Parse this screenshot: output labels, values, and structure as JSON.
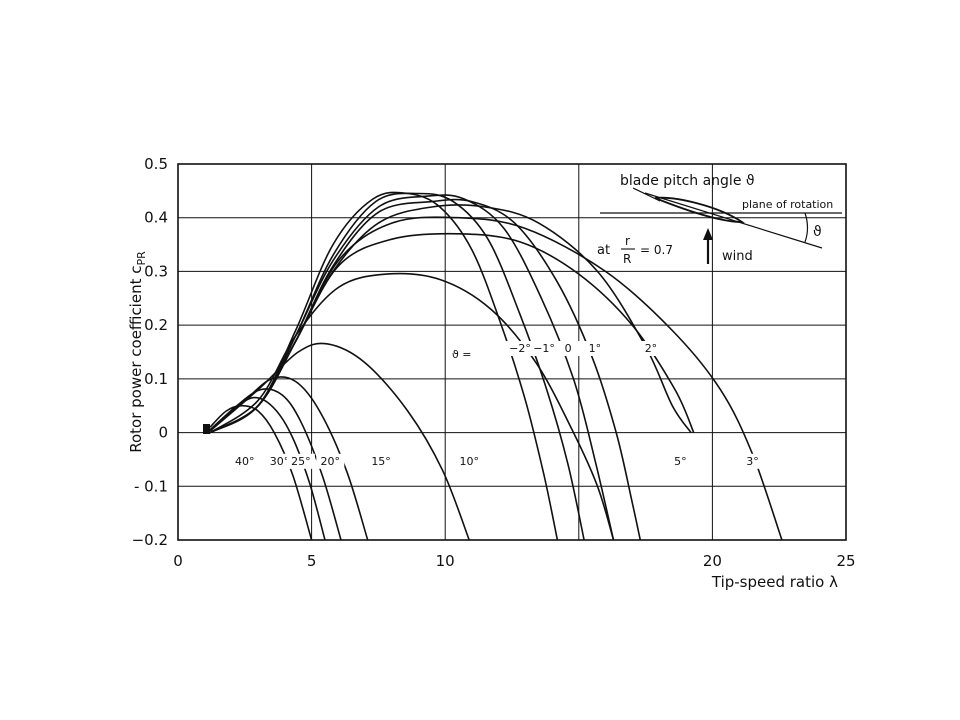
{
  "chart_data": {
    "type": "line",
    "title": "",
    "xlabel": "Tip-speed ratio λ",
    "ylabel": "Rotor power coefficient c",
    "ylabel_subscript": "PR",
    "xlim": [
      0,
      25
    ],
    "ylim": [
      -0.2,
      0.5
    ],
    "x_ticks": [
      0,
      5,
      10,
      20,
      25
    ],
    "x_tick_labels": [
      "0",
      "5",
      "10",
      "20",
      "25"
    ],
    "y_ticks": [
      0.5,
      0.4,
      0.3,
      0.2,
      0.1,
      0,
      -0.1,
      -0.2
    ],
    "y_tick_labels": [
      "0.5",
      "0.4",
      "0.3",
      "0.2",
      "0.1",
      "0",
      "- 0.1",
      "−0.2"
    ],
    "grid": true,
    "legend": "none",
    "theta_prefix": "ϑ  =",
    "series": [
      {
        "name": "40°",
        "label_x": 2.5,
        "label_y": -0.06,
        "points": [
          [
            1.2,
            0.01
          ],
          [
            1.8,
            0.04
          ],
          [
            2.4,
            0.05
          ],
          [
            3.0,
            0.04
          ],
          [
            3.6,
            0.0
          ],
          [
            4.3,
            -0.08
          ],
          [
            5.0,
            -0.2
          ]
        ]
      },
      {
        "name": "30°",
        "label_x": 3.8,
        "label_y": -0.06,
        "points": [
          [
            1.2,
            0.005
          ],
          [
            2.0,
            0.04
          ],
          [
            2.8,
            0.065
          ],
          [
            3.5,
            0.05
          ],
          [
            4.2,
            0.0
          ],
          [
            4.9,
            -0.09
          ],
          [
            5.5,
            -0.2
          ]
        ]
      },
      {
        "name": "25°",
        "label_x": 4.6,
        "label_y": -0.06,
        "points": [
          [
            1.2,
            0.005
          ],
          [
            2.2,
            0.05
          ],
          [
            3.1,
            0.08
          ],
          [
            3.9,
            0.07
          ],
          [
            4.6,
            0.02
          ],
          [
            5.4,
            -0.08
          ],
          [
            6.1,
            -0.2
          ]
        ]
      },
      {
        "name": "20°",
        "label_x": 5.7,
        "label_y": -0.06,
        "points": [
          [
            1.2,
            0.005
          ],
          [
            2.5,
            0.06
          ],
          [
            3.5,
            0.1
          ],
          [
            4.4,
            0.095
          ],
          [
            5.3,
            0.04
          ],
          [
            6.3,
            -0.07
          ],
          [
            7.1,
            -0.2
          ]
        ]
      },
      {
        "name": "15°",
        "label_x": 7.6,
        "label_y": -0.06,
        "points": [
          [
            1.2,
            0.003
          ],
          [
            3.0,
            0.08
          ],
          [
            4.5,
            0.15
          ],
          [
            5.6,
            0.165
          ],
          [
            7.0,
            0.13
          ],
          [
            8.6,
            0.04
          ],
          [
            9.9,
            -0.07
          ],
          [
            10.9,
            -0.2
          ]
        ]
      },
      {
        "name": "10°",
        "label_x": 10.9,
        "label_y": -0.06,
        "points": [
          [
            1.2,
            0.0
          ],
          [
            3.0,
            0.06
          ],
          [
            4.4,
            0.18
          ],
          [
            6.0,
            0.27
          ],
          [
            7.8,
            0.295
          ],
          [
            9.8,
            0.285
          ],
          [
            11.7,
            0.23
          ],
          [
            13.4,
            0.13
          ],
          [
            14.8,
            0.0
          ],
          [
            15.7,
            -0.1
          ],
          [
            16.3,
            -0.2
          ]
        ]
      },
      {
        "name": "5°",
        "label_x": 18.8,
        "label_y": -0.06,
        "points": [
          [
            1.2,
            0.0
          ],
          [
            3.0,
            0.05
          ],
          [
            4.4,
            0.17
          ],
          [
            6.0,
            0.31
          ],
          [
            8.0,
            0.36
          ],
          [
            10.5,
            0.37
          ],
          [
            12.8,
            0.355
          ],
          [
            15.0,
            0.295
          ],
          [
            17.0,
            0.2
          ],
          [
            18.6,
            0.08
          ],
          [
            19.3,
            0.0
          ]
        ]
      },
      {
        "name": "3°",
        "label_x": 21.5,
        "label_y": -0.06,
        "points": [
          [
            1.2,
            0.0
          ],
          [
            3.0,
            0.05
          ],
          [
            4.4,
            0.17
          ],
          [
            6.0,
            0.32
          ],
          [
            8.0,
            0.39
          ],
          [
            10.5,
            0.4
          ],
          [
            13.0,
            0.38
          ],
          [
            16.0,
            0.3
          ],
          [
            18.5,
            0.19
          ],
          [
            20.3,
            0.08
          ],
          [
            21.5,
            -0.04
          ],
          [
            22.6,
            -0.2
          ]
        ]
      },
      {
        "name": "2°",
        "label_x": 17.7,
        "label_y": 0.15,
        "points": [
          [
            1.2,
            0.0
          ],
          [
            3.0,
            0.05
          ],
          [
            4.4,
            0.17
          ],
          [
            5.8,
            0.3
          ],
          [
            7.5,
            0.39
          ],
          [
            9.5,
            0.42
          ],
          [
            11.5,
            0.42
          ],
          [
            13.5,
            0.39
          ],
          [
            15.7,
            0.3
          ],
          [
            17.5,
            0.16
          ],
          [
            18.5,
            0.05
          ],
          [
            19.2,
            0.0
          ]
        ]
      },
      {
        "name": "1°",
        "label_x": 15.6,
        "label_y": 0.15,
        "points": [
          [
            1.2,
            0.0
          ],
          [
            3.0,
            0.05
          ],
          [
            4.4,
            0.17
          ],
          [
            5.8,
            0.31
          ],
          [
            7.5,
            0.41
          ],
          [
            9.5,
            0.43
          ],
          [
            11.0,
            0.43
          ],
          [
            12.6,
            0.39
          ],
          [
            14.2,
            0.28
          ],
          [
            15.5,
            0.14
          ],
          [
            16.4,
            0.0
          ],
          [
            17.0,
            -0.13
          ],
          [
            17.3,
            -0.2
          ]
        ]
      },
      {
        "name": "0",
        "label_x": 14.6,
        "label_y": 0.15,
        "points": [
          [
            1.2,
            0.0
          ],
          [
            3.0,
            0.05
          ],
          [
            4.4,
            0.18
          ],
          [
            5.8,
            0.32
          ],
          [
            7.5,
            0.42
          ],
          [
            9.3,
            0.44
          ],
          [
            10.7,
            0.435
          ],
          [
            12.2,
            0.38
          ],
          [
            13.6,
            0.25
          ],
          [
            14.8,
            0.1
          ],
          [
            15.6,
            -0.05
          ],
          [
            16.3,
            -0.2
          ]
        ]
      },
      {
        "name": "−1°",
        "label_x": 13.7,
        "label_y": 0.15,
        "points": [
          [
            1.2,
            0.0
          ],
          [
            3.0,
            0.05
          ],
          [
            4.4,
            0.18
          ],
          [
            5.8,
            0.33
          ],
          [
            7.4,
            0.43
          ],
          [
            9.0,
            0.445
          ],
          [
            10.3,
            0.43
          ],
          [
            11.6,
            0.36
          ],
          [
            12.8,
            0.22
          ],
          [
            13.8,
            0.08
          ],
          [
            14.6,
            -0.06
          ],
          [
            15.2,
            -0.2
          ]
        ]
      },
      {
        "name": "−2°",
        "label_x": 12.8,
        "label_y": 0.15,
        "points": [
          [
            1.2,
            0.0
          ],
          [
            3.0,
            0.05
          ],
          [
            4.4,
            0.19
          ],
          [
            5.8,
            0.35
          ],
          [
            7.3,
            0.435
          ],
          [
            8.6,
            0.445
          ],
          [
            9.8,
            0.42
          ],
          [
            11.0,
            0.34
          ],
          [
            12.1,
            0.2
          ],
          [
            13.0,
            0.06
          ],
          [
            13.7,
            -0.08
          ],
          [
            14.2,
            -0.2
          ]
        ]
      }
    ]
  },
  "inset": {
    "title": "blade pitch angle ϑ",
    "plane_label": "plane of rotation",
    "at_label": "at",
    "r_label": "r",
    "R_label": "R",
    "ratio_value": "= 0.7",
    "wind_label": "wind",
    "angle_symbol": "ϑ"
  }
}
